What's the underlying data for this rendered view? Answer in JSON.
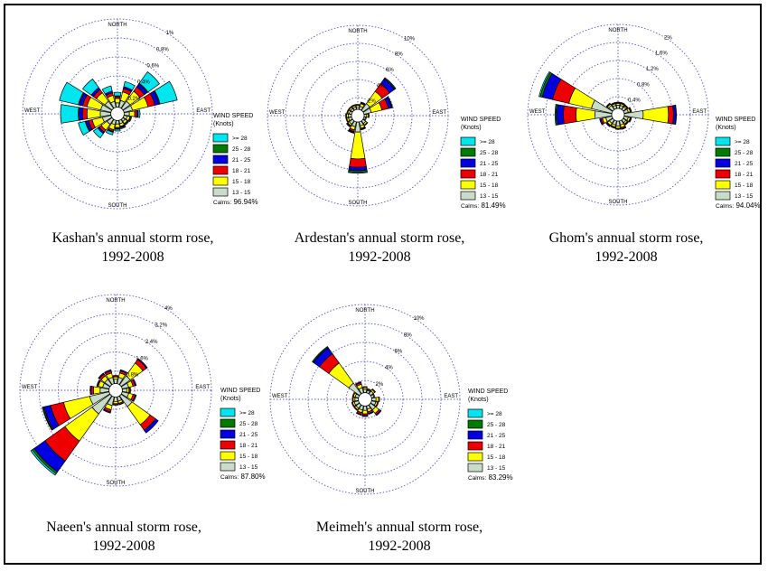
{
  "legend": {
    "title_line1": "WIND SPEED",
    "title_line2": "(Knots)",
    "items": [
      {
        "label": ">= 28",
        "color": "#00e5ee"
      },
      {
        "label": "25 - 28",
        "color": "#007a00"
      },
      {
        "label": "21 - 25",
        "color": "#0000e0"
      },
      {
        "label": "18 - 21",
        "color": "#ee0000"
      },
      {
        "label": "15 - 18",
        "color": "#ffff00"
      },
      {
        "label": "13 - 15",
        "color": "#c8dcc8"
      }
    ]
  },
  "compass": {
    "north": "NORTH",
    "south": "SOUTH",
    "east": "EAST",
    "west": "WEST"
  },
  "chart_data": [
    {
      "type": "wind-rose",
      "caption_line1": "Kashan's annual storm rose,",
      "caption_line2": "1992-2008",
      "calms_label": "Calms:",
      "calms_value": "96.94%",
      "rings": [
        "0.2%",
        "0.4%",
        "0.6%",
        "0.8%",
        "1%"
      ],
      "r_max": 1.0,
      "directions_deg": [
        0,
        22.5,
        45,
        67.5,
        90,
        112.5,
        135,
        157.5,
        180,
        202.5,
        225,
        247.5,
        270,
        292.5,
        315,
        337.5
      ],
      "series": [
        {
          "name": "13 - 15",
          "values": [
            0.05,
            0.08,
            0.1,
            0.1,
            0.06,
            0.04,
            0.03,
            0.04,
            0.04,
            0.05,
            0.07,
            0.1,
            0.12,
            0.12,
            0.1,
            0.07
          ]
        },
        {
          "name": "15 - 18",
          "values": [
            0.05,
            0.1,
            0.14,
            0.18,
            0.06,
            0.03,
            0.03,
            0.03,
            0.04,
            0.06,
            0.08,
            0.12,
            0.15,
            0.16,
            0.12,
            0.07
          ]
        },
        {
          "name": "18 - 21",
          "values": [
            0.02,
            0.04,
            0.06,
            0.08,
            0.03,
            0.01,
            0.01,
            0.01,
            0.01,
            0.02,
            0.03,
            0.04,
            0.05,
            0.05,
            0.04,
            0.03
          ]
        },
        {
          "name": "21 - 25",
          "values": [
            0.01,
            0.02,
            0.04,
            0.05,
            0.01,
            0.0,
            0.0,
            0.01,
            0.01,
            0.01,
            0.02,
            0.03,
            0.04,
            0.04,
            0.03,
            0.02
          ]
        },
        {
          "name": "25 - 28",
          "values": [
            0.0,
            0.0,
            0.01,
            0.01,
            0.0,
            0.0,
            0.0,
            0.0,
            0.0,
            0.0,
            0.0,
            0.01,
            0.01,
            0.01,
            0.0,
            0.0
          ]
        },
        {
          "name": ">= 28",
          "values": [
            0.04,
            0.06,
            0.16,
            0.2,
            0.02,
            0.01,
            0.01,
            0.01,
            0.02,
            0.03,
            0.06,
            0.08,
            0.2,
            0.22,
            0.12,
            0.06
          ]
        }
      ]
    },
    {
      "type": "wind-rose",
      "caption_line1": "Ardestan's annual storm rose,",
      "caption_line2": "1992-2008",
      "calms_label": "Calms:",
      "calms_value": "81.49%",
      "rings": [
        "2%",
        "4%",
        "6%",
        "8%",
        "10%"
      ],
      "r_max": 10,
      "directions_deg": [
        0,
        22.5,
        45,
        67.5,
        90,
        112.5,
        135,
        157.5,
        180,
        202.5,
        225,
        247.5,
        270,
        292.5,
        315,
        337.5
      ],
      "series": [
        {
          "name": "13 - 15",
          "values": [
            0.3,
            0.4,
            1.0,
            0.9,
            0.3,
            0.2,
            0.4,
            0.5,
            1.2,
            0.6,
            0.5,
            0.4,
            0.4,
            0.3,
            0.3,
            0.3
          ]
        },
        {
          "name": "15 - 18",
          "values": [
            0.2,
            0.3,
            1.8,
            1.3,
            0.2,
            0.1,
            0.2,
            0.3,
            3.2,
            0.4,
            0.2,
            0.2,
            0.2,
            0.2,
            0.2,
            0.2
          ]
        },
        {
          "name": "18 - 21",
          "values": [
            0.1,
            0.1,
            1.1,
            0.8,
            0.1,
            0.0,
            0.1,
            0.1,
            1.0,
            0.2,
            0.1,
            0.1,
            0.1,
            0.1,
            0.1,
            0.1
          ]
        },
        {
          "name": "21 - 25",
          "values": [
            0.0,
            0.1,
            0.7,
            0.4,
            0.0,
            0.0,
            0.0,
            0.1,
            0.4,
            0.1,
            0.1,
            0.0,
            0.0,
            0.0,
            0.0,
            0.0
          ]
        },
        {
          "name": "25 - 28",
          "values": [
            0,
            0,
            0.1,
            0.1,
            0,
            0,
            0,
            0,
            0.2,
            0.1,
            0,
            0,
            0,
            0,
            0,
            0
          ]
        },
        {
          "name": ">= 28",
          "values": [
            0,
            0,
            0.1,
            0,
            0,
            0,
            0,
            0,
            0.1,
            0,
            0,
            0,
            0,
            0,
            0,
            0
          ]
        }
      ]
    },
    {
      "type": "wind-rose",
      "caption_line1": "Ghom's annual storm rose,",
      "caption_line2": "1992-2008",
      "calms_label": "Calms:",
      "calms_value": "94.04%",
      "rings": [
        "0.4%",
        "0.8%",
        "1.2%",
        "1.6%",
        "2%"
      ],
      "r_max": 2.0,
      "directions_deg": [
        0,
        22.5,
        45,
        67.5,
        90,
        112.5,
        135,
        157.5,
        180,
        202.5,
        225,
        247.5,
        270,
        292.5,
        315,
        337.5
      ],
      "series": [
        {
          "name": "13 - 15",
          "values": [
            0.08,
            0.08,
            0.08,
            0.1,
            0.45,
            0.1,
            0.08,
            0.1,
            0.12,
            0.1,
            0.1,
            0.15,
            0.4,
            0.5,
            0.12,
            0.08
          ]
        },
        {
          "name": "15 - 18",
          "values": [
            0.04,
            0.04,
            0.03,
            0.05,
            0.6,
            0.05,
            0.04,
            0.06,
            0.05,
            0.05,
            0.06,
            0.08,
            0.45,
            0.55,
            0.04,
            0.04
          ]
        },
        {
          "name": "18 - 21",
          "values": [
            0.02,
            0.02,
            0.02,
            0.02,
            0.12,
            0.02,
            0.02,
            0.03,
            0.02,
            0.02,
            0.02,
            0.04,
            0.3,
            0.4,
            0.02,
            0.02
          ]
        },
        {
          "name": "21 - 25",
          "values": [
            0.01,
            0.01,
            0.01,
            0.01,
            0.06,
            0.01,
            0.01,
            0.02,
            0.01,
            0.01,
            0.02,
            0.03,
            0.15,
            0.25,
            0.01,
            0.01
          ]
        },
        {
          "name": "25 - 28",
          "values": [
            0,
            0,
            0,
            0,
            0.01,
            0,
            0,
            0,
            0,
            0,
            0,
            0,
            0.03,
            0.05,
            0,
            0
          ]
        },
        {
          "name": ">= 28",
          "values": [
            0,
            0,
            0,
            0,
            0,
            0,
            0,
            0,
            0,
            0,
            0,
            0,
            0.02,
            0.03,
            0,
            0
          ]
        }
      ]
    },
    {
      "type": "wind-rose",
      "caption_line1": "Naeen's annual storm rose,",
      "caption_line2": "1992-2008",
      "calms_label": "Calms:",
      "calms_value": "87.80%",
      "rings": [
        "0.8%",
        "1.6%",
        "2.4%",
        "3.2%",
        "4%"
      ],
      "r_max": 4.0,
      "directions_deg": [
        0,
        22.5,
        45,
        67.5,
        90,
        112.5,
        135,
        157.5,
        180,
        202.5,
        225,
        247.5,
        270,
        292.5,
        315,
        337.5
      ],
      "series": [
        {
          "name": "13 - 15",
          "values": [
            0.2,
            0.3,
            0.5,
            0.3,
            0.2,
            0.3,
            0.6,
            0.2,
            0.2,
            0.4,
            1.0,
            0.9,
            0.4,
            0.3,
            0.3,
            0.3
          ]
        },
        {
          "name": "15 - 18",
          "values": [
            0.1,
            0.2,
            0.7,
            0.2,
            0.1,
            0.2,
            1.0,
            0.1,
            0.1,
            0.2,
            1.5,
            1.2,
            0.3,
            0.2,
            0.2,
            0.2
          ]
        },
        {
          "name": "18 - 21",
          "values": [
            0.05,
            0.1,
            0.2,
            0.1,
            0.05,
            0.1,
            0.3,
            0.05,
            0.05,
            0.1,
            1.1,
            0.6,
            0.1,
            0.05,
            0.1,
            0.1
          ]
        },
        {
          "name": "21 - 25",
          "values": [
            0.02,
            0.05,
            0.05,
            0.05,
            0.02,
            0.05,
            0.15,
            0.02,
            0.02,
            0.05,
            0.6,
            0.3,
            0.05,
            0.02,
            0.05,
            0.05
          ]
        },
        {
          "name": "25 - 28",
          "values": [
            0,
            0,
            0,
            0,
            0,
            0,
            0,
            0,
            0,
            0,
            0.1,
            0.05,
            0,
            0,
            0,
            0
          ]
        },
        {
          "name": ">= 28",
          "values": [
            0,
            0,
            0,
            0,
            0,
            0,
            0,
            0,
            0,
            0,
            0.08,
            0.03,
            0,
            0,
            0,
            0
          ]
        }
      ]
    },
    {
      "type": "wind-rose",
      "caption_line1": "Meimeh's annual storm rose,",
      "caption_line2": "1992-2008",
      "calms_label": "Calms:",
      "calms_value": "83.29%",
      "rings": [
        "2%",
        "4%",
        "6%",
        "8%",
        "10%"
      ],
      "r_max": 10,
      "directions_deg": [
        0,
        22.5,
        45,
        67.5,
        90,
        112.5,
        135,
        157.5,
        180,
        202.5,
        225,
        247.5,
        270,
        292.5,
        315,
        337.5
      ],
      "series": [
        {
          "name": "13 - 15",
          "values": [
            0.4,
            0.3,
            0.4,
            0.3,
            0.5,
            0.5,
            0.7,
            0.4,
            0.5,
            0.5,
            0.5,
            0.5,
            0.4,
            0.4,
            1.5,
            0.6
          ]
        },
        {
          "name": "15 - 18",
          "values": [
            0.2,
            0.1,
            0.2,
            0.1,
            0.3,
            0.2,
            0.5,
            0.3,
            0.4,
            0.3,
            0.2,
            0.2,
            0.2,
            0.2,
            2.8,
            0.4
          ]
        },
        {
          "name": "18 - 21",
          "values": [
            0.1,
            0.1,
            0.1,
            0.0,
            0.1,
            0.1,
            0.2,
            0.2,
            0.2,
            0.2,
            0.1,
            0.1,
            0.1,
            0.1,
            1.3,
            0.2
          ]
        },
        {
          "name": "21 - 25",
          "values": [
            0.0,
            0.0,
            0.0,
            0.0,
            0.0,
            0.0,
            0.1,
            0.1,
            0.1,
            0.1,
            0.0,
            0.0,
            0.0,
            0.0,
            0.8,
            0.1
          ]
        },
        {
          "name": "25 - 28",
          "values": [
            0,
            0,
            0,
            0,
            0,
            0,
            0,
            0,
            0,
            0,
            0,
            0,
            0,
            0,
            0.1,
            0
          ]
        },
        {
          "name": ">= 28",
          "values": [
            0,
            0,
            0,
            0,
            0,
            0,
            0,
            0,
            0,
            0,
            0,
            0,
            0,
            0,
            0.1,
            0
          ]
        }
      ]
    }
  ]
}
